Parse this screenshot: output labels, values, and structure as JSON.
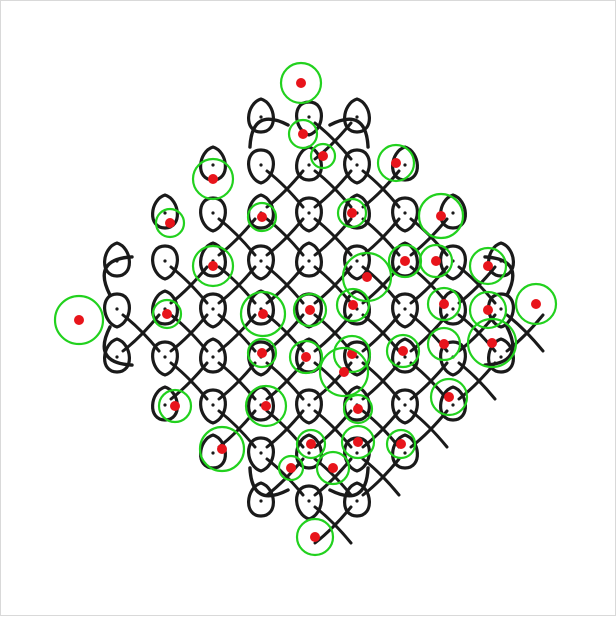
{
  "image": {
    "subject": "kolam-dot-pattern",
    "background_color": "#ffffff",
    "ink_color": "#1a1a1a",
    "dot_color": "#e8141b",
    "ring_color": "#22d11e"
  }
}
